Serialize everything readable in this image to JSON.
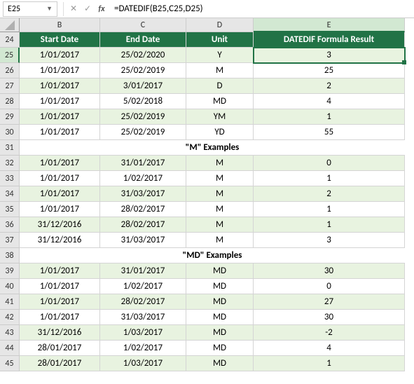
{
  "name_box": "E25",
  "formula": "=DATEDIF(B25,C25,D25)",
  "columns": [
    "B",
    "C",
    "D",
    "E"
  ],
  "active_col_idx": 3,
  "active_row": 25,
  "headers": [
    "Start Date",
    "End Date",
    "Unit",
    "DATEDIF Formula Result"
  ],
  "header_bg": "#217346",
  "even_bg": "#e8f3e0",
  "rows": [
    {
      "r": 24,
      "type": "header"
    },
    {
      "r": 25,
      "type": "data",
      "band": "even",
      "c": [
        "1/01/2017",
        "25/02/2020",
        "Y",
        "3"
      ],
      "active": 3
    },
    {
      "r": 26,
      "type": "data",
      "band": "odd",
      "c": [
        "1/01/2017",
        "25/02/2019",
        "M",
        "25"
      ]
    },
    {
      "r": 27,
      "type": "data",
      "band": "even",
      "c": [
        "1/01/2017",
        "3/01/2017",
        "D",
        "2"
      ]
    },
    {
      "r": 28,
      "type": "data",
      "band": "odd",
      "c": [
        "1/01/2017",
        "5/02/2018",
        "MD",
        "4"
      ]
    },
    {
      "r": 29,
      "type": "data",
      "band": "even",
      "c": [
        "1/01/2017",
        "25/02/2019",
        "YM",
        "1"
      ]
    },
    {
      "r": 30,
      "type": "data",
      "band": "odd",
      "c": [
        "1/01/2017",
        "25/02/2019",
        "YD",
        "55"
      ]
    },
    {
      "r": 31,
      "type": "section",
      "label": "\"M\" Examples"
    },
    {
      "r": 32,
      "type": "data",
      "band": "even",
      "c": [
        "1/01/2017",
        "31/01/2017",
        "M",
        "0"
      ]
    },
    {
      "r": 33,
      "type": "data",
      "band": "odd",
      "c": [
        "1/01/2017",
        "1/02/2017",
        "M",
        "1"
      ]
    },
    {
      "r": 34,
      "type": "data",
      "band": "even",
      "c": [
        "1/01/2017",
        "31/03/2017",
        "M",
        "2"
      ]
    },
    {
      "r": 35,
      "type": "data",
      "band": "odd",
      "c": [
        "1/01/2017",
        "28/02/2017",
        "M",
        "1"
      ]
    },
    {
      "r": 36,
      "type": "data",
      "band": "even",
      "c": [
        "31/12/2016",
        "28/02/2017",
        "M",
        "1"
      ]
    },
    {
      "r": 37,
      "type": "data",
      "band": "odd",
      "c": [
        "31/12/2016",
        "31/03/2017",
        "M",
        "3"
      ]
    },
    {
      "r": 38,
      "type": "section",
      "label": "\"MD\" Examples"
    },
    {
      "r": 39,
      "type": "data",
      "band": "even",
      "c": [
        "1/01/2017",
        "31/01/2017",
        "MD",
        "30"
      ]
    },
    {
      "r": 40,
      "type": "data",
      "band": "odd",
      "c": [
        "1/01/2017",
        "1/02/2017",
        "MD",
        "0"
      ]
    },
    {
      "r": 41,
      "type": "data",
      "band": "even",
      "c": [
        "1/01/2017",
        "28/02/2017",
        "MD",
        "27"
      ]
    },
    {
      "r": 42,
      "type": "data",
      "band": "odd",
      "c": [
        "1/01/2017",
        "31/03/2017",
        "MD",
        "30"
      ]
    },
    {
      "r": 43,
      "type": "data",
      "band": "even",
      "c": [
        "31/12/2016",
        "1/03/2017",
        "MD",
        "-2"
      ]
    },
    {
      "r": 44,
      "type": "data",
      "band": "odd",
      "c": [
        "28/01/2017",
        "1/02/2017",
        "MD",
        "4"
      ]
    },
    {
      "r": 45,
      "type": "data",
      "band": "even",
      "c": [
        "28/01/2017",
        "1/03/2017",
        "MD",
        "1"
      ]
    }
  ]
}
